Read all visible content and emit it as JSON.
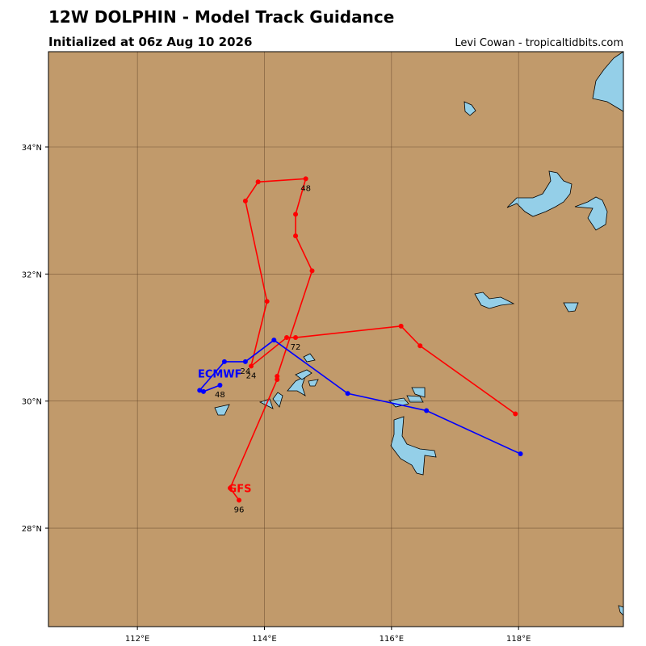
{
  "chart_data": {
    "type": "track-map",
    "title": "12W DOLPHIN - Model Track Guidance",
    "subtitle": "Initialized at 06z Aug 10 2026",
    "credit": "Levi Cowan - tropicaltidbits.com",
    "xlim": [
      110.6,
      119.65
    ],
    "ylim": [
      26.45,
      35.5
    ],
    "xticks": [
      {
        "value": 112,
        "label": "112°E"
      },
      {
        "value": 114,
        "label": "114°E"
      },
      {
        "value": 116,
        "label": "116°E"
      },
      {
        "value": 118,
        "label": "118°E"
      }
    ],
    "yticks": [
      {
        "value": 28,
        "label": "28°N"
      },
      {
        "value": 30,
        "label": "30°N"
      },
      {
        "value": 32,
        "label": "32°N"
      },
      {
        "value": 34,
        "label": "34°N"
      }
    ],
    "grid": true,
    "series": [
      {
        "name": "GFS",
        "color": "#ff0000",
        "lon": [
          117.95,
          116.45,
          116.15,
          114.49,
          114.35,
          113.79,
          114.04,
          113.7,
          113.9,
          114.65,
          114.49,
          114.49,
          114.75,
          114.2,
          114.2,
          113.46,
          113.6
        ],
        "lat": [
          29.8,
          30.87,
          31.18,
          31.0,
          31.0,
          30.55,
          31.57,
          33.15,
          33.45,
          33.5,
          32.94,
          32.6,
          32.05,
          30.39,
          30.34,
          28.63,
          28.44
        ],
        "point_labels": [
          null,
          null,
          null,
          "72",
          null,
          "24",
          null,
          null,
          null,
          "48",
          null,
          null,
          null,
          null,
          null,
          null,
          "96"
        ]
      },
      {
        "name": "ECMWF",
        "color": "#0000ff",
        "lon": [
          118.03,
          116.55,
          115.31,
          114.15,
          113.7,
          113.37,
          112.98,
          113.04,
          113.3
        ],
        "lat": [
          29.17,
          29.85,
          30.12,
          30.96,
          30.62,
          30.62,
          30.17,
          30.15,
          30.25
        ],
        "point_labels": [
          null,
          null,
          null,
          null,
          "24",
          null,
          null,
          null,
          "48"
        ]
      }
    ]
  }
}
